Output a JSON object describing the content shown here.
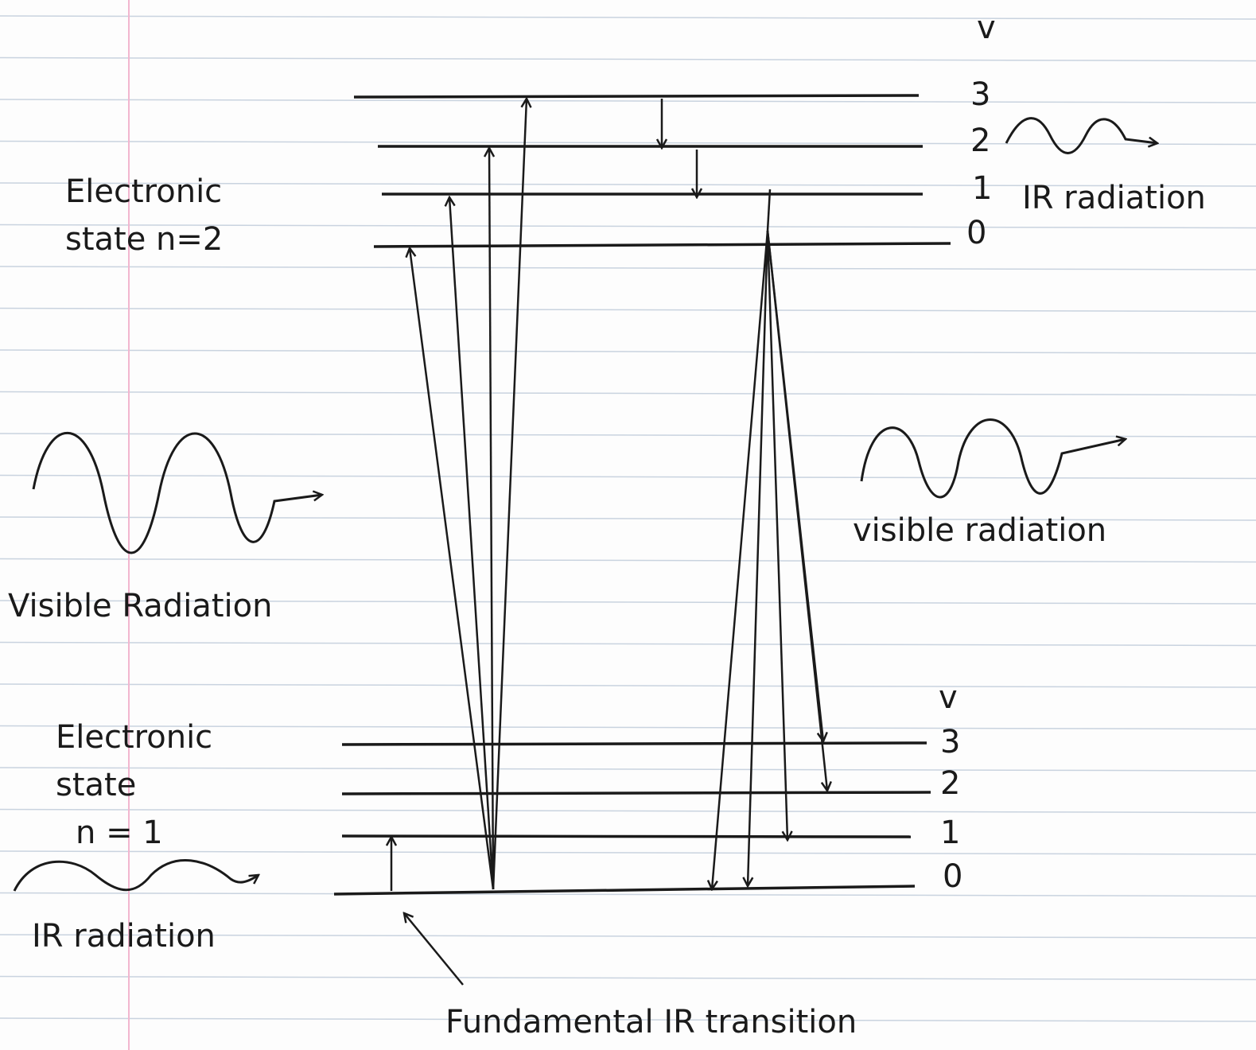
{
  "upper_state": {
    "label_lines": [
      "Electronic",
      "state n=2"
    ],
    "v_header": "v",
    "levels": [
      "3",
      "2",
      "1",
      "0"
    ]
  },
  "lower_state": {
    "label_lines": [
      "Electronic",
      "state",
      "n = 1"
    ],
    "v_header": "v",
    "levels": [
      "3",
      "2",
      "1",
      "0"
    ]
  },
  "annotations": {
    "upper_ir": "IR radiation",
    "right_visible": "visible radiation",
    "left_visible": "Visible Radiation",
    "lower_ir": "IR radiation",
    "fundamental": "Fundamental IR transition"
  }
}
